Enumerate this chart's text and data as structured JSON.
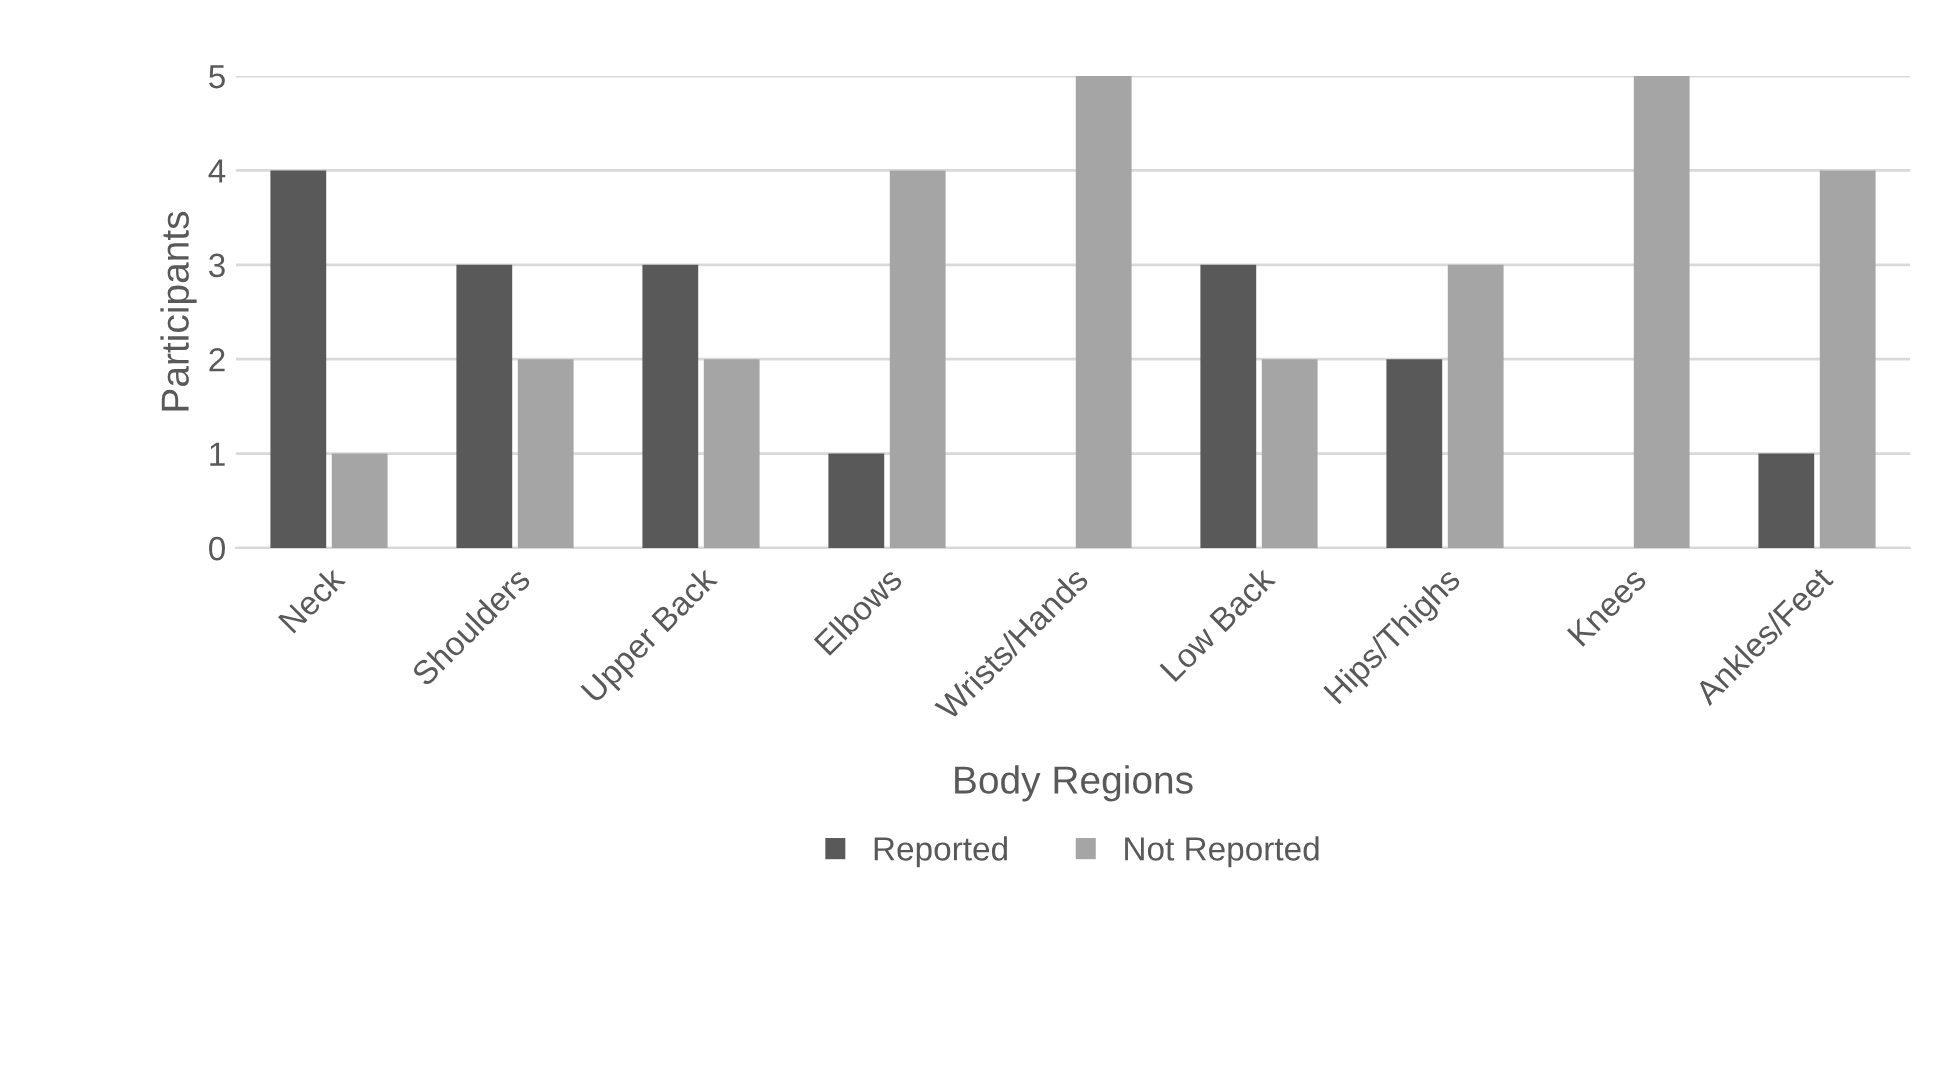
{
  "chart_data": {
    "type": "bar",
    "xlabel": "Body Regions",
    "ylabel": "Participants",
    "categories": [
      "Neck",
      "Shoulders",
      "Upper Back",
      "Elbows",
      "Wrists/Hands",
      "Low Back",
      "Hips/Thighs",
      "Knees",
      "Ankles/Feet"
    ],
    "series": [
      {
        "name": "Reported",
        "color": "#595959",
        "values": [
          4,
          3,
          3,
          1,
          0,
          3,
          2,
          0,
          1
        ]
      },
      {
        "name": "Not Reported",
        "color": "#a5a5a5",
        "values": [
          1,
          2,
          2,
          4,
          5,
          2,
          3,
          5,
          4
        ]
      }
    ],
    "ylim": [
      0,
      5
    ],
    "yticks": [
      0,
      1,
      2,
      3,
      4,
      5
    ],
    "grid": "y",
    "legend": "bottom"
  }
}
